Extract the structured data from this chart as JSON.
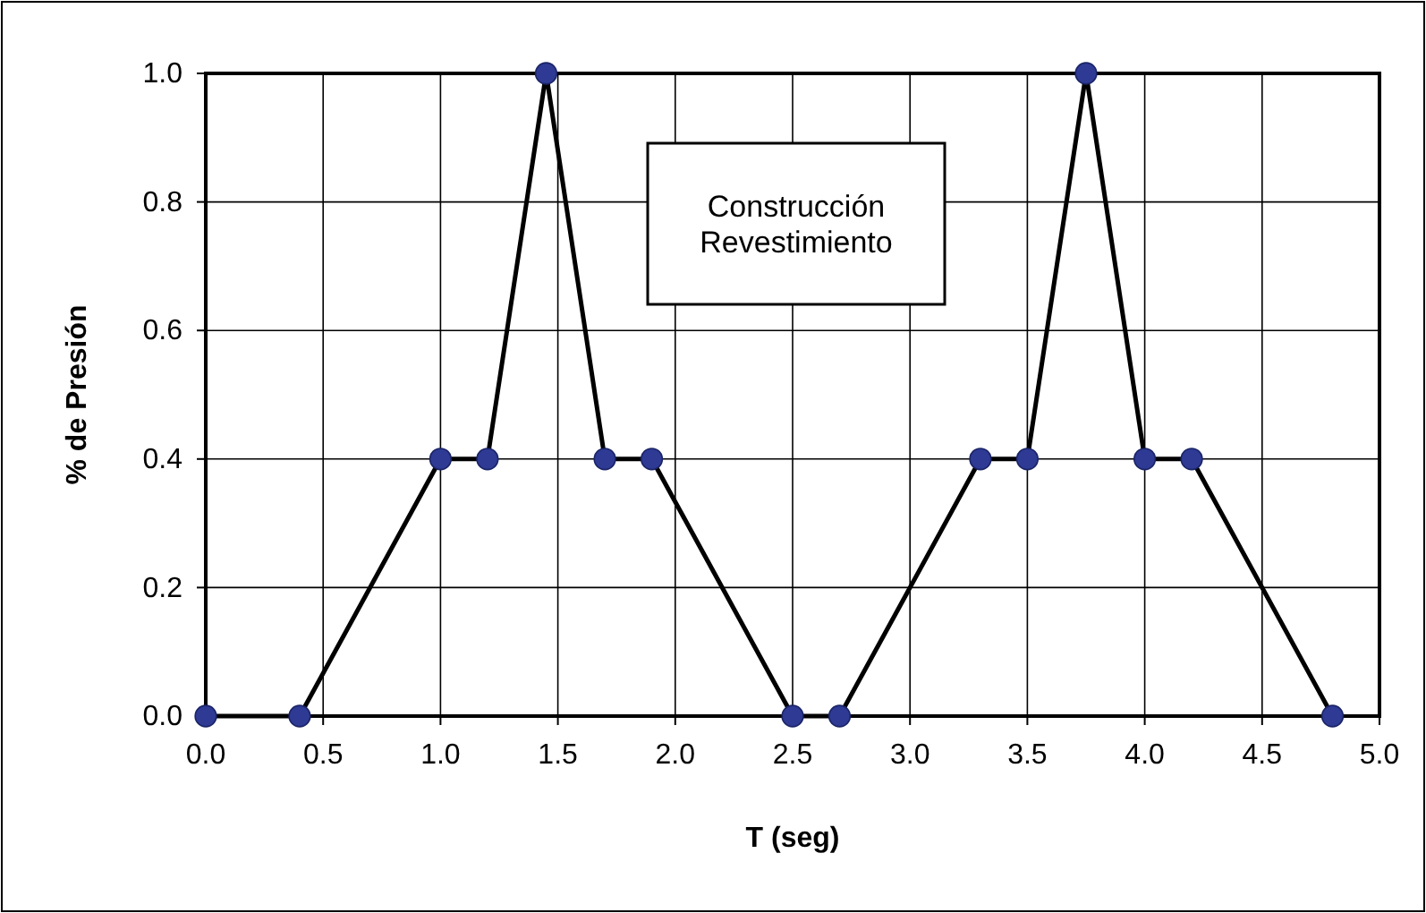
{
  "chart_data": {
    "type": "line",
    "xlabel": "T (seg)",
    "ylabel": "% de Presión",
    "annotations": [
      "Construcción\nRevestimiento"
    ],
    "series": [
      {
        "color": "#000000",
        "x": [
          0,
          0.4,
          1.0,
          1.2,
          1.45,
          1.7,
          1.9,
          2.5,
          2.7,
          3.3,
          3.5,
          3.75,
          4.0,
          4.2,
          4.8
        ],
        "values": [
          0,
          0,
          0.4,
          0.4,
          1.0,
          0.4,
          0.4,
          0,
          0,
          0.4,
          0.4,
          1.0,
          0.4,
          0.4,
          0
        ]
      }
    ],
    "xlim": [
      0,
      5
    ],
    "xticks": [
      {
        "value": 0,
        "label": "0.0"
      },
      0.5,
      {
        "value": 1,
        "label": "1.0"
      },
      1.5,
      {
        "value": 2,
        "label": "2.0"
      },
      2.5,
      {
        "value": 3,
        "label": "3.0"
      },
      3.5,
      {
        "value": 4,
        "label": "4.0"
      },
      4.5,
      {
        "value": 5,
        "label": "5.0"
      }
    ],
    "ylim": [
      0,
      1
    ],
    "yticks": [
      {
        "value": 0,
        "label": "0.0"
      },
      0.2,
      0.4,
      0.6,
      0.8,
      {
        "value": 1,
        "label": "1.0"
      }
    ],
    "grid": true,
    "marker": "circle",
    "line_style": "solid"
  }
}
